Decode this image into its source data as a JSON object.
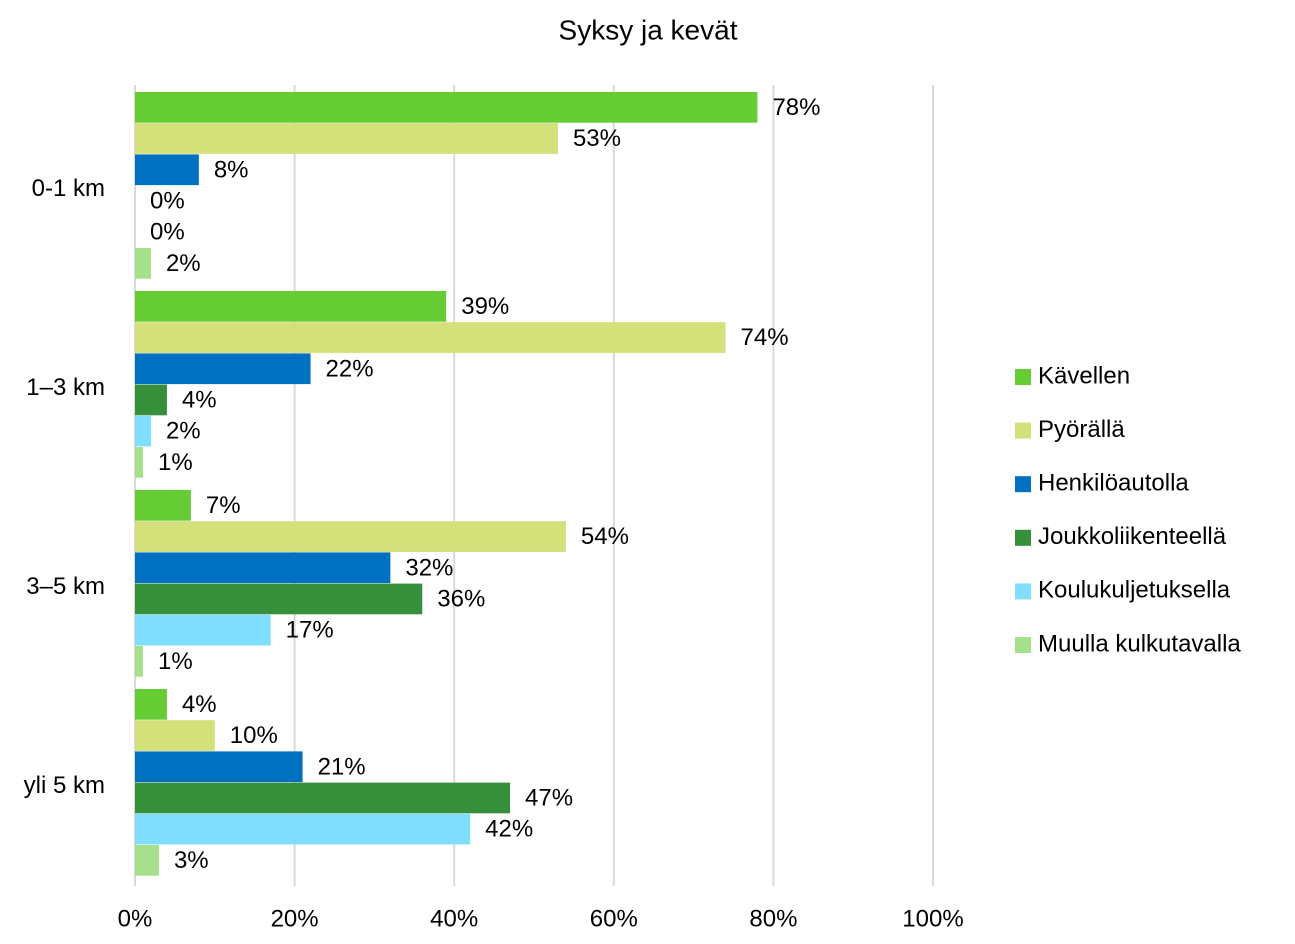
{
  "chart_data": {
    "type": "bar",
    "orientation": "horizontal",
    "title": "Syksy ja kevät",
    "categories": [
      "0-1 km",
      "1–3 km",
      "3–5 km",
      "yli 5 km"
    ],
    "series": [
      {
        "name": "Kävellen",
        "color": "#66cc33",
        "values": [
          78,
          39,
          7,
          4
        ],
        "value_labels": [
          "78%",
          "39%",
          "7%",
          "4%"
        ]
      },
      {
        "name": "Pyörällä",
        "color": "#d4e07a",
        "values": [
          53,
          74,
          54,
          10
        ],
        "value_labels": [
          "53%",
          "74%",
          "54%",
          "10%"
        ]
      },
      {
        "name": "Henkilöautolla",
        "color": "#0070c0",
        "values": [
          8,
          22,
          32,
          21
        ],
        "value_labels": [
          "8%",
          "22%",
          "32%",
          "21%"
        ]
      },
      {
        "name": "Joukkoliikenteellä",
        "color": "#368f3a",
        "values": [
          0,
          4,
          36,
          47
        ],
        "value_labels": [
          "0%",
          "4%",
          "36%",
          "47%"
        ]
      },
      {
        "name": "Koulukuljetuksella",
        "color": "#80dfff",
        "values": [
          0,
          2,
          17,
          42
        ],
        "value_labels": [
          "0%",
          "2%",
          "17%",
          "42%"
        ]
      },
      {
        "name": "Muulla kulkutavalla",
        "color": "#a6e08a",
        "values": [
          2,
          1,
          1,
          3
        ],
        "value_labels": [
          "2%",
          "1%",
          "1%",
          "3%"
        ]
      }
    ],
    "xlim": [
      0,
      100
    ],
    "xticks": [
      {
        "value": 0,
        "label": "0%"
      },
      {
        "value": 20,
        "label": "20%"
      },
      {
        "value": 40,
        "label": "40%"
      },
      {
        "value": 60,
        "label": "60%"
      },
      {
        "value": 80,
        "label": "80%"
      },
      {
        "value": 100,
        "label": "100%"
      }
    ],
    "grid": true,
    "legend": "right"
  }
}
